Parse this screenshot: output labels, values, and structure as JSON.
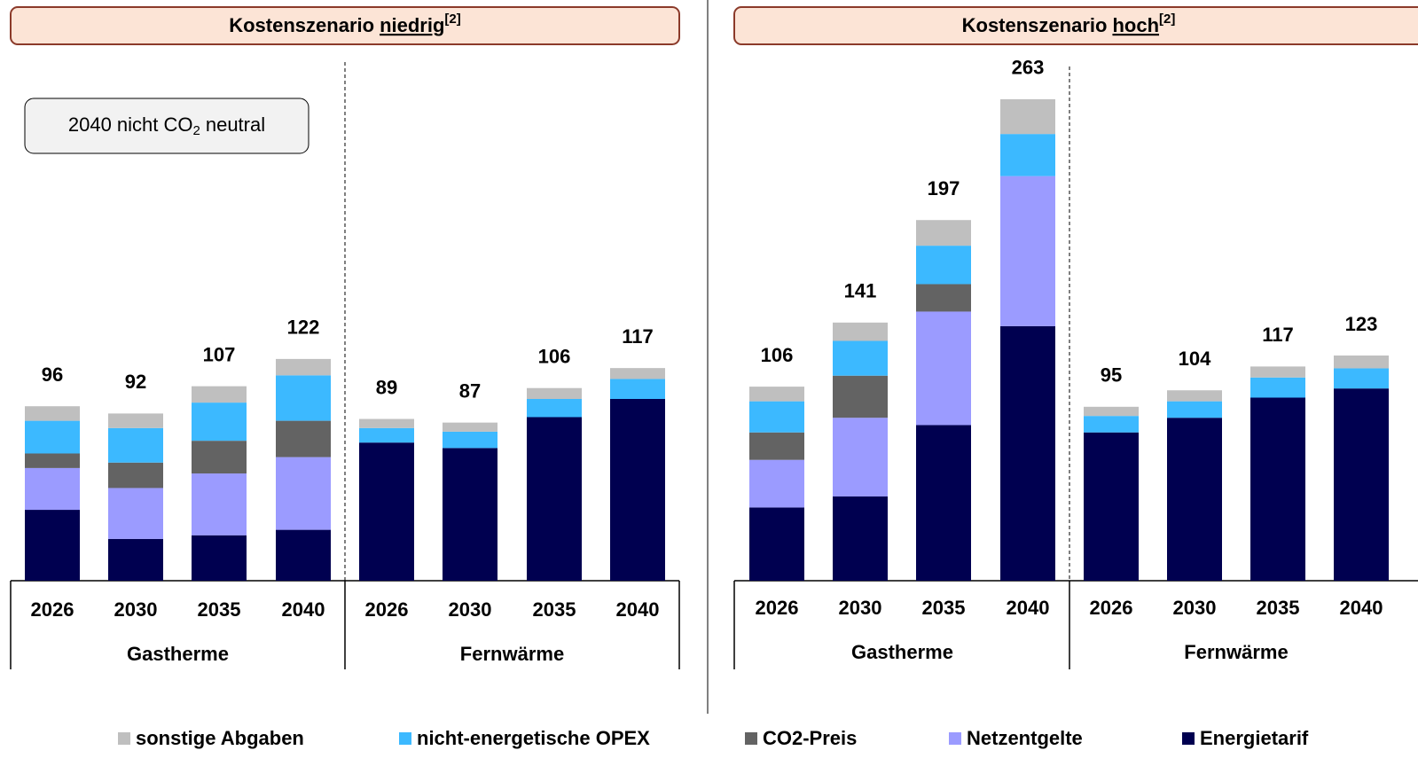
{
  "chart_data": [
    {
      "type": "stacked_bar",
      "title": {
        "text": "Kostenszenario",
        "emphasis": "niedrig",
        "note": "[2]"
      },
      "annotation": {
        "text": "2040 nicht CO",
        "sub": "2",
        "tail": "neutral"
      },
      "categories": [
        "2026",
        "2030",
        "2035",
        "2040",
        "2026",
        "2030",
        "2035",
        "2040"
      ],
      "groups": [
        "Gastherme",
        "Fernwärme"
      ],
      "totals": [
        96,
        92,
        107,
        122,
        89,
        87,
        106,
        117
      ],
      "series": [
        {
          "name": "sonstige Abgaben",
          "color": "#bfbfbf",
          "values": [
            8,
            8,
            9,
            9,
            5,
            5,
            6,
            6
          ]
        },
        {
          "name": "nicht-energetische OPEX",
          "color": "#3cb9ff",
          "values": [
            18,
            19,
            21,
            25,
            8,
            9,
            10,
            11
          ]
        },
        {
          "name": "CO2-Preis",
          "color": "#636363",
          "values": [
            8,
            14,
            18,
            20,
            0,
            0,
            0,
            0
          ]
        },
        {
          "name": "Netzentgelte",
          "color": "#9b9bff",
          "values": [
            23,
            28,
            34,
            40,
            0,
            0,
            0,
            0
          ]
        },
        {
          "name": "Energietarif",
          "color": "#000050",
          "values": [
            39,
            23,
            25,
            28,
            76,
            73,
            90,
            100
          ]
        }
      ]
    },
    {
      "type": "stacked_bar",
      "title": {
        "text": "Kostenszenario",
        "emphasis": "hoch",
        "note": "[2]"
      },
      "categories": [
        "2026",
        "2030",
        "2035",
        "2040",
        "2026",
        "2030",
        "2035",
        "2040"
      ],
      "groups": [
        "Gastherme",
        "Fernwärme"
      ],
      "totals": [
        106,
        141,
        197,
        263,
        95,
        104,
        117,
        123
      ],
      "series": [
        {
          "name": "sonstige Abgaben",
          "color": "#bfbfbf",
          "values": [
            8,
            10,
            14,
            19,
            5,
            6,
            6,
            7
          ]
        },
        {
          "name": "nicht-energetische OPEX",
          "color": "#3cb9ff",
          "values": [
            17,
            19,
            21,
            23,
            9,
            9,
            11,
            11
          ]
        },
        {
          "name": "CO2-Preis",
          "color": "#636363",
          "values": [
            15,
            23,
            15,
            0,
            0,
            0,
            0,
            0
          ]
        },
        {
          "name": "Netzentgelte",
          "color": "#9b9bff",
          "values": [
            26,
            43,
            62,
            82,
            0,
            0,
            0,
            0
          ]
        },
        {
          "name": "Energietarif",
          "color": "#000050",
          "values": [
            40,
            46,
            85,
            139,
            81,
            89,
            100,
            105
          ]
        }
      ]
    }
  ]
}
